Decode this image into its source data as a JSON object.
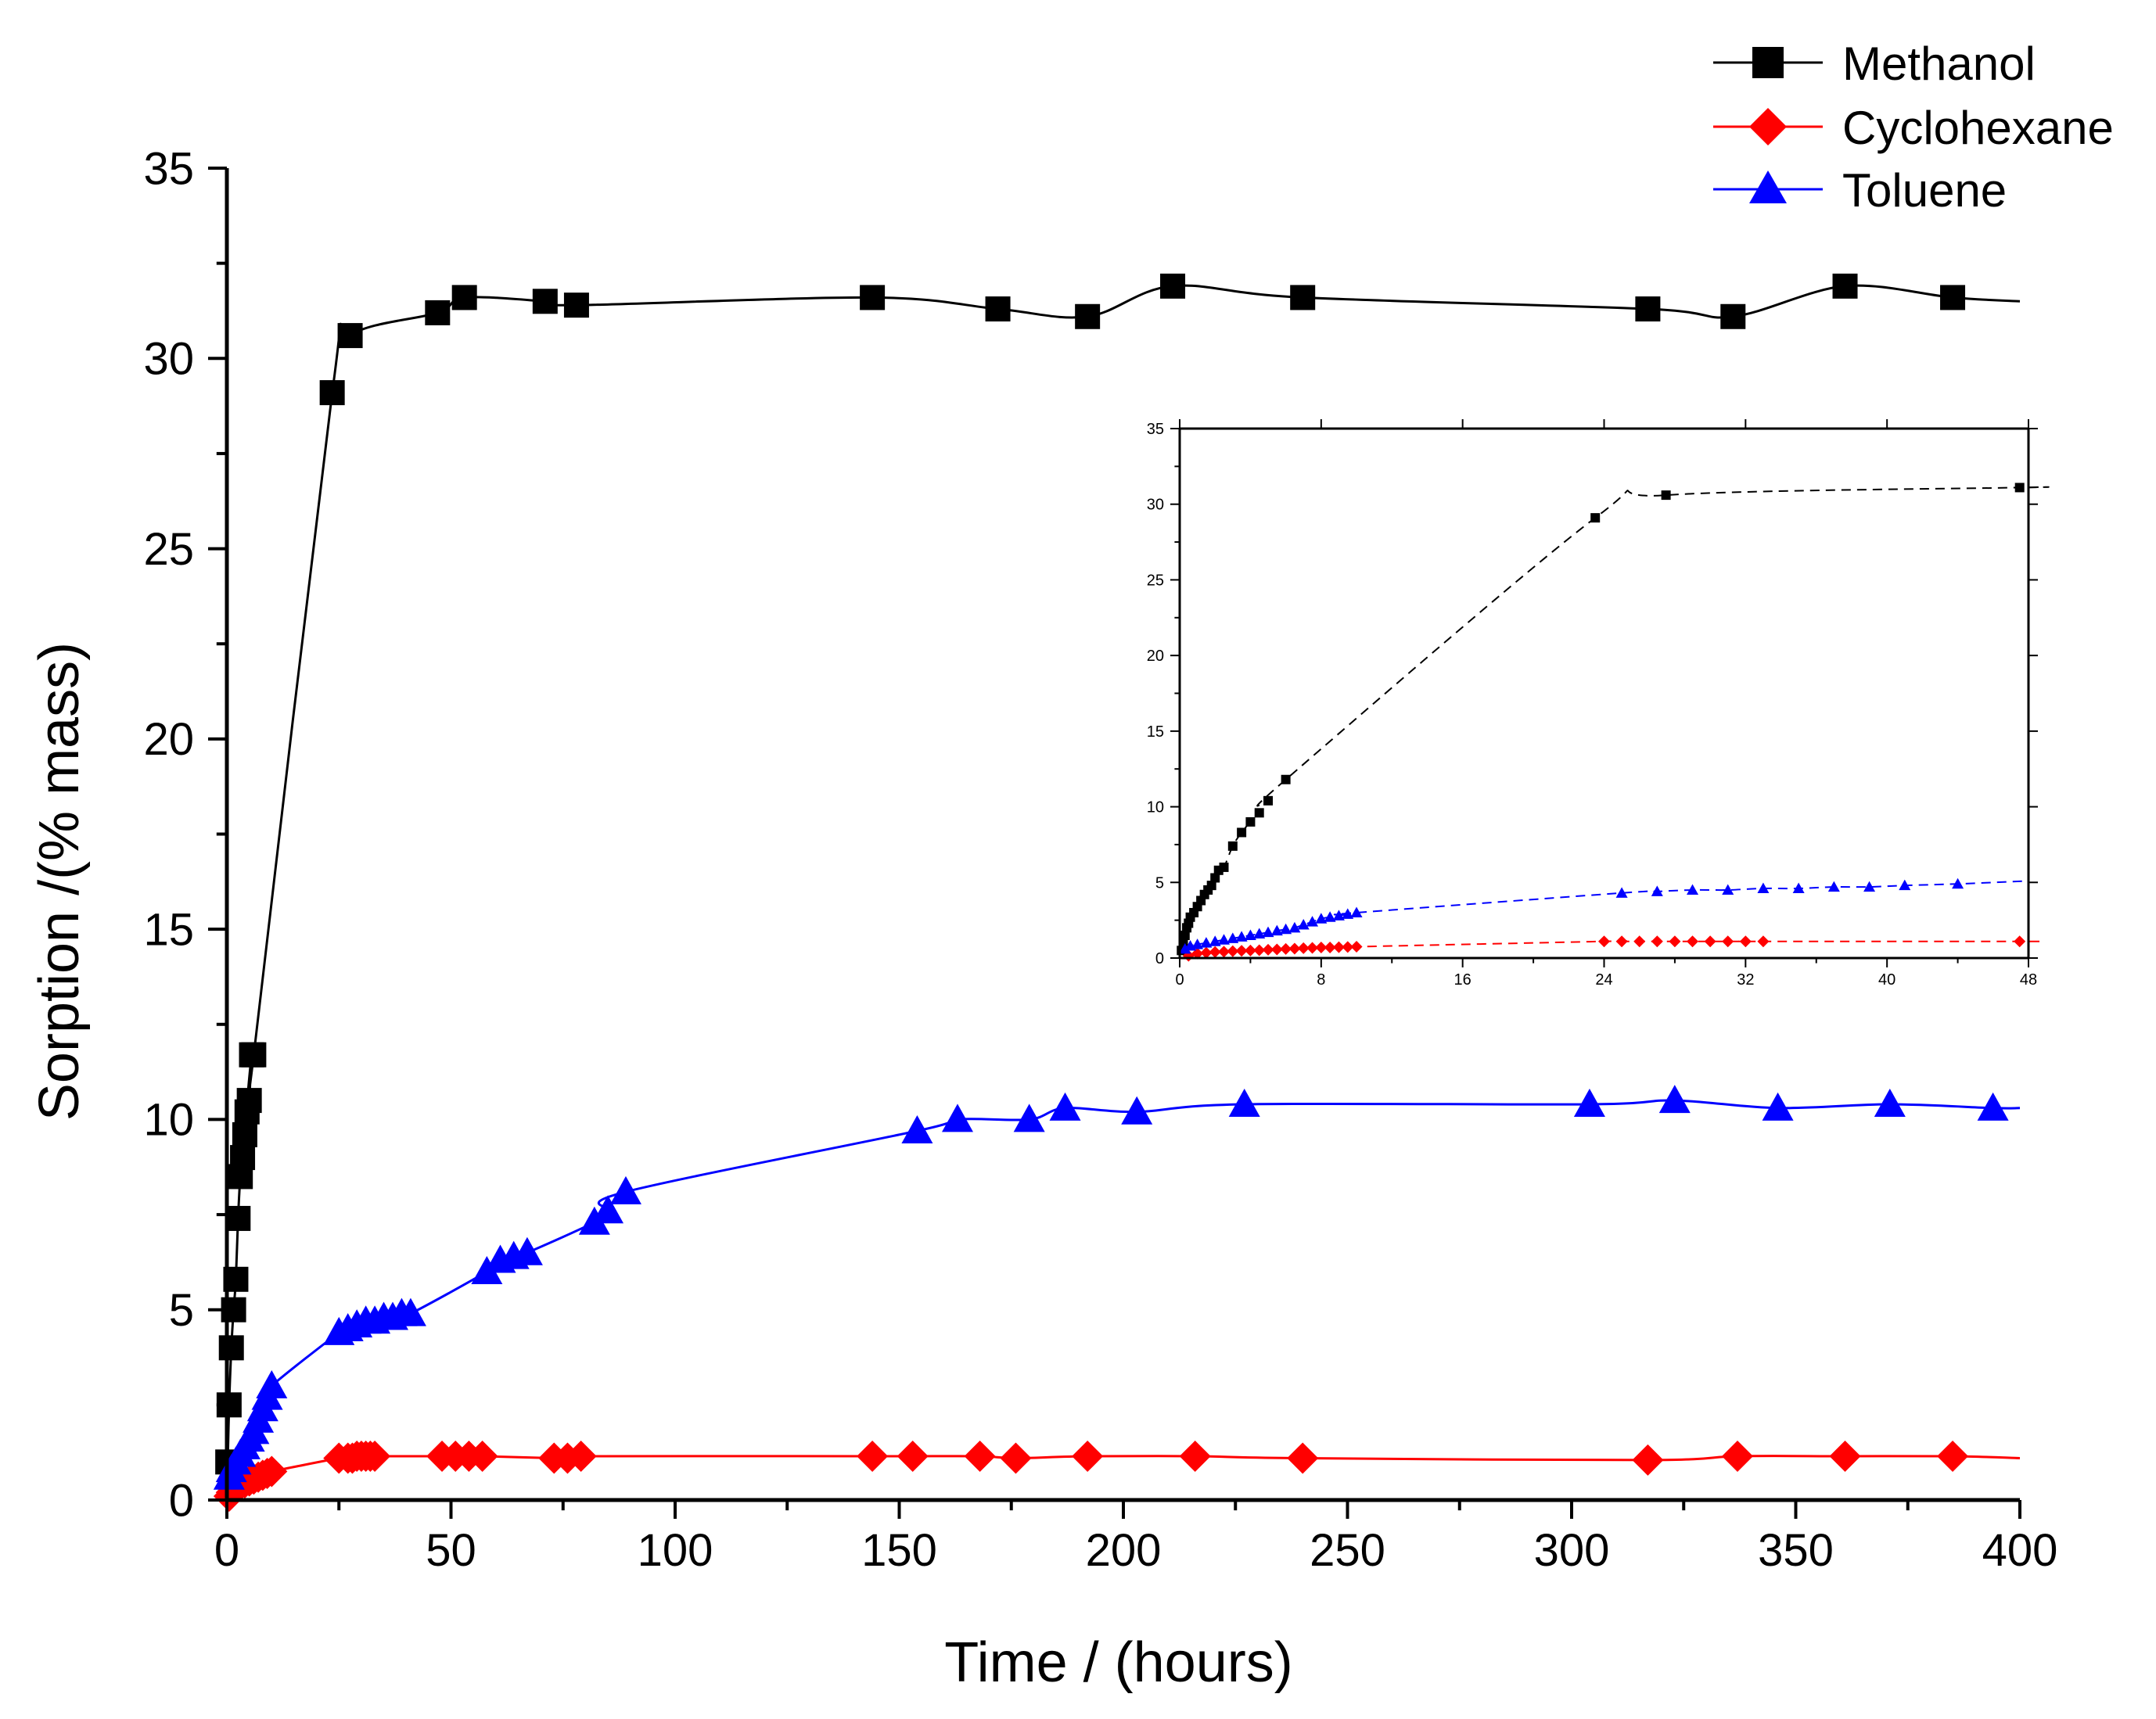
{
  "chart_data": [
    {
      "type": "line",
      "xlabel": "Time / (hours)",
      "ylabel": "Sorption /(% mass)",
      "xlim": [
        0,
        400
      ],
      "ylim": [
        0,
        35
      ],
      "xticks": [
        0,
        50,
        100,
        150,
        200,
        250,
        300,
        350,
        400
      ],
      "yticks": [
        0,
        5,
        10,
        15,
        20,
        25,
        30,
        35
      ],
      "xtick_labels": [
        "0",
        "50",
        "100",
        "150",
        "200",
        "250",
        "300",
        "350",
        "400"
      ],
      "ytick_labels": [
        "0",
        "5",
        "10",
        "15",
        "20",
        "25",
        "30",
        "35"
      ],
      "legend_position": "top-right",
      "series": [
        {
          "name": "Methanol",
          "color": "#000000",
          "marker": "square",
          "x": [
            0.2,
            0.5,
            1,
            1.5,
            2,
            2.5,
            3,
            3.5,
            4,
            4.5,
            5,
            5.5,
            6,
            23.5,
            27.5,
            47,
            53,
            71,
            78,
            144,
            172,
            192,
            211,
            240,
            317,
            336,
            361,
            385,
            400
          ],
          "y": [
            1.0,
            2.5,
            4.0,
            5.0,
            5.8,
            7.4,
            8.5,
            9.0,
            9.6,
            10.2,
            10.5,
            11.7,
            11.7,
            29.1,
            30.6,
            31.2,
            31.6,
            31.5,
            31.4,
            31.6,
            31.3,
            31.1,
            31.9,
            31.6,
            31.3,
            31.1,
            31.9,
            31.6,
            31.5
          ],
          "marker_count": 28
        },
        {
          "name": "Cyclohexane",
          "color": "#ff0000",
          "marker": "diamond",
          "x": [
            0.5,
            1,
            2,
            3,
            4,
            5,
            6,
            7,
            8,
            9,
            10,
            25,
            27,
            28,
            29,
            30,
            31,
            32,
            33,
            48,
            51,
            54,
            57,
            73,
            76,
            79,
            144,
            153,
            168,
            176,
            192,
            216,
            240,
            317,
            337,
            361,
            385,
            400
          ],
          "y": [
            0.1,
            0.2,
            0.3,
            0.4,
            0.45,
            0.5,
            0.55,
            0.6,
            0.65,
            0.7,
            0.75,
            1.1,
            1.1,
            1.1,
            1.15,
            1.15,
            1.15,
            1.15,
            1.15,
            1.15,
            1.15,
            1.15,
            1.15,
            1.1,
            1.1,
            1.15,
            1.15,
            1.15,
            1.15,
            1.1,
            1.15,
            1.15,
            1.1,
            1.05,
            1.15,
            1.15,
            1.15,
            1.1
          ],
          "marker_count": 37
        },
        {
          "name": "Toluene",
          "color": "#0000ff",
          "marker": "triangle",
          "x": [
            0.5,
            1,
            2,
            3,
            4,
            5,
            6,
            7,
            8,
            9,
            10,
            25,
            27,
            29,
            31,
            33,
            35,
            37,
            39,
            41,
            58,
            61,
            64,
            67,
            82,
            85,
            89,
            154,
            163,
            179,
            187,
            203,
            227,
            304,
            323,
            346,
            371,
            394,
            400
          ],
          "y": [
            0.6,
            0.8,
            1.0,
            1.2,
            1.4,
            1.6,
            1.8,
            2.1,
            2.4,
            2.7,
            3.0,
            4.4,
            4.5,
            4.6,
            4.7,
            4.7,
            4.8,
            4.8,
            4.9,
            4.9,
            6.0,
            6.3,
            6.4,
            6.5,
            7.3,
            7.6,
            8.1,
            9.7,
            10.0,
            10.0,
            10.3,
            10.2,
            10.4,
            10.4,
            10.5,
            10.3,
            10.4,
            10.3,
            10.3
          ],
          "marker_count": 38
        }
      ]
    },
    {
      "type": "line",
      "role": "inset",
      "xlim": [
        0,
        48
      ],
      "ylim": [
        0,
        35
      ],
      "xticks": [
        0,
        8,
        16,
        24,
        32,
        40,
        48
      ],
      "yticks": [
        0,
        5,
        10,
        15,
        20,
        25,
        30,
        35
      ],
      "xtick_labels": [
        "0",
        "8",
        "16",
        "24",
        "32",
        "40",
        "48"
      ],
      "ytick_labels": [
        "0",
        "5",
        "10",
        "15",
        "20",
        "25",
        "30",
        "35"
      ],
      "series": [
        {
          "name": "Methanol",
          "color": "#000000",
          "marker": "square",
          "line_style": "dashed",
          "x": [
            0.1,
            0.2,
            0.3,
            0.4,
            0.5,
            0.6,
            0.8,
            1.0,
            1.2,
            1.4,
            1.6,
            1.8,
            2.0,
            2.2,
            2.5,
            3.0,
            3.5,
            4.0,
            4.5,
            5.0,
            6.0,
            23.5,
            27.5,
            47.5,
            48
          ],
          "y": [
            0.5,
            1.0,
            1.5,
            2.0,
            2.3,
            2.7,
            3.0,
            3.4,
            3.8,
            4.2,
            4.5,
            4.8,
            5.3,
            5.8,
            6.0,
            7.4,
            8.3,
            9.0,
            9.6,
            10.4,
            11.8,
            29.1,
            30.6,
            31.1,
            31.1
          ],
          "marker_count": 24
        },
        {
          "name": "Cyclohexane",
          "color": "#ff0000",
          "marker": "diamond",
          "line_style": "dashed",
          "x": [
            0.5,
            1,
            1.5,
            2,
            2.5,
            3,
            3.5,
            4,
            4.5,
            5,
            5.5,
            6,
            6.5,
            7,
            7.5,
            8,
            8.5,
            9,
            9.5,
            10,
            24,
            25,
            26,
            27,
            28,
            29,
            30,
            31,
            32,
            33,
            47.5,
            48
          ],
          "y": [
            0.15,
            0.3,
            0.35,
            0.4,
            0.42,
            0.45,
            0.48,
            0.5,
            0.52,
            0.55,
            0.57,
            0.6,
            0.62,
            0.65,
            0.67,
            0.7,
            0.7,
            0.72,
            0.73,
            0.75,
            1.1,
            1.1,
            1.1,
            1.1,
            1.1,
            1.1,
            1.1,
            1.1,
            1.1,
            1.1,
            1.1,
            1.1
          ],
          "marker_count": 31
        },
        {
          "name": "Toluene",
          "color": "#0000ff",
          "marker": "triangle",
          "line_style": "dashed",
          "x": [
            0.3,
            0.6,
            1,
            1.5,
            2,
            2.5,
            3,
            3.5,
            4,
            4.5,
            5,
            5.5,
            6,
            6.5,
            7,
            7.5,
            8,
            8.5,
            9,
            9.5,
            10,
            25,
            27,
            29,
            31,
            33,
            35,
            37,
            39,
            41,
            44,
            48
          ],
          "y": [
            0.6,
            0.8,
            0.9,
            1.0,
            1.1,
            1.2,
            1.3,
            1.4,
            1.5,
            1.6,
            1.7,
            1.8,
            1.9,
            2.0,
            2.2,
            2.4,
            2.6,
            2.7,
            2.8,
            2.9,
            3.0,
            4.3,
            4.4,
            4.5,
            4.5,
            4.6,
            4.6,
            4.7,
            4.7,
            4.8,
            4.9,
            5.1
          ],
          "marker_count": 31
        }
      ]
    }
  ]
}
